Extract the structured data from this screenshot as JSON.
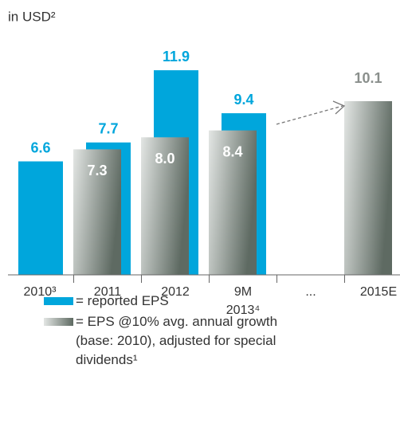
{
  "chart_data": {
    "type": "bar",
    "title": "in USD²",
    "categories": [
      "2010³",
      "2011",
      "2012",
      "9M 2013⁴",
      "...",
      "2015E"
    ],
    "series": [
      {
        "name": "reported EPS",
        "color": "#00a6dc",
        "values": [
          6.6,
          7.7,
          11.9,
          9.4,
          null,
          null
        ],
        "value_labels": [
          "6.6",
          "7.7",
          "11.9",
          "9.4",
          null,
          null
        ]
      },
      {
        "name": "EPS @10% avg. annual growth (base: 2010), adjusted for special dividends¹",
        "color": [
          "#e3e6e4",
          "#5e6a62"
        ],
        "values": [
          null,
          7.3,
          8.0,
          8.4,
          null,
          10.1
        ],
        "value_labels": [
          null,
          "7.3",
          "8.0",
          "8.4",
          null,
          "10.1"
        ]
      }
    ],
    "legend_prefix": "=",
    "ylim": [
      0,
      12
    ]
  }
}
